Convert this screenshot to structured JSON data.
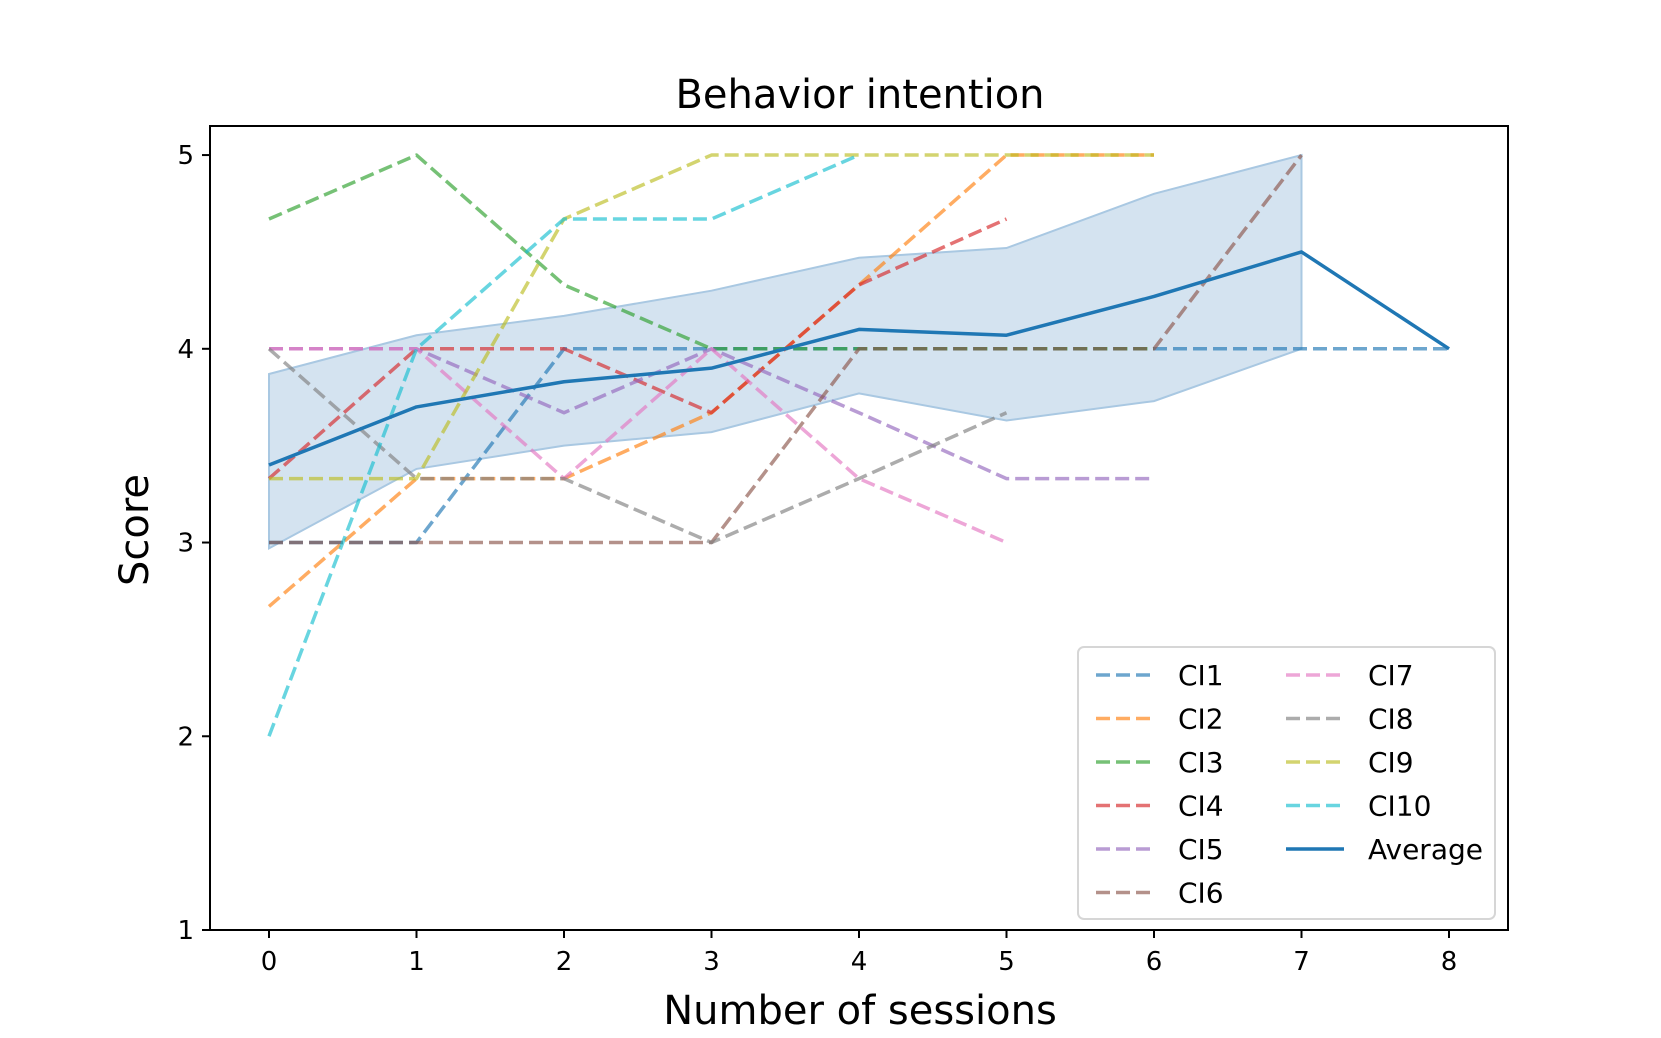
{
  "chart_data": {
    "type": "line",
    "title": "Behavior intention",
    "xlabel": "Number of sessions",
    "ylabel": "Score",
    "xlim": [
      -0.4,
      8.4
    ],
    "ylim": [
      1,
      5.15
    ],
    "xticks": [
      "0",
      "1",
      "2",
      "3",
      "4",
      "5",
      "6",
      "7",
      "8"
    ],
    "yticks": [
      "1",
      "2",
      "3",
      "4",
      "5"
    ],
    "grid": false,
    "legend_position": "lower-right",
    "legend_columns": 2,
    "series": [
      {
        "name": "CI1",
        "color": "#1f77b4",
        "style": "dashed",
        "x": [
          0,
          1,
          2,
          3,
          4,
          5,
          6,
          7,
          8
        ],
        "y": [
          3,
          3,
          4,
          4,
          4,
          4,
          4,
          4,
          4
        ]
      },
      {
        "name": "CI2",
        "color": "#ff7f0e",
        "style": "dashed",
        "x": [
          0,
          1,
          2,
          3,
          4,
          5,
          6
        ],
        "y": [
          2.67,
          3.33,
          3.33,
          3.67,
          4.33,
          5,
          5
        ]
      },
      {
        "name": "CI3",
        "color": "#2ca02c",
        "style": "dashed",
        "x": [
          0,
          1,
          2,
          3,
          4,
          5,
          6
        ],
        "y": [
          4.67,
          5,
          4.33,
          4,
          4,
          4,
          4
        ]
      },
      {
        "name": "CI4",
        "color": "#d62728",
        "style": "dashed",
        "x": [
          0,
          1,
          2,
          3,
          4,
          5
        ],
        "y": [
          3.33,
          4,
          4,
          3.67,
          4.33,
          4.67
        ]
      },
      {
        "name": "CI5",
        "color": "#9467bd",
        "style": "dashed",
        "x": [
          0,
          1,
          2,
          3,
          4,
          5,
          6
        ],
        "y": [
          4,
          4,
          3.67,
          4,
          3.67,
          3.33,
          3.33
        ]
      },
      {
        "name": "CI6",
        "color": "#8c564b",
        "style": "dashed",
        "x": [
          0,
          1,
          2,
          3,
          4,
          5,
          6,
          7
        ],
        "y": [
          3,
          3,
          3,
          3,
          4,
          4,
          4,
          5
        ]
      },
      {
        "name": "CI7",
        "color": "#e377c2",
        "style": "dashed",
        "x": [
          0,
          1,
          2,
          3,
          4,
          5
        ],
        "y": [
          4,
          4,
          3.33,
          4,
          3.33,
          3
        ]
      },
      {
        "name": "CI8",
        "color": "#7f7f7f",
        "style": "dashed",
        "x": [
          0,
          1,
          2,
          3,
          4,
          5
        ],
        "y": [
          4,
          3.33,
          3.33,
          3,
          3.33,
          3.67
        ]
      },
      {
        "name": "CI9",
        "color": "#bcbd22",
        "style": "dashed",
        "x": [
          0,
          1,
          2,
          3,
          4,
          5,
          6
        ],
        "y": [
          3.33,
          3.33,
          4.67,
          5,
          5,
          5,
          5
        ]
      },
      {
        "name": "CI10",
        "color": "#17becf",
        "style": "dashed",
        "x": [
          0,
          1,
          2,
          3,
          4
        ],
        "y": [
          2,
          4,
          4.67,
          4.67,
          5
        ]
      },
      {
        "name": "Average",
        "color": "#1f77b4",
        "style": "solid",
        "x": [
          0,
          1,
          2,
          3,
          4,
          5,
          6,
          7,
          8
        ],
        "y": [
          3.4,
          3.7,
          3.83,
          3.9,
          4.1,
          4.07,
          4.27,
          4.5,
          4
        ]
      }
    ],
    "band": {
      "color": "#a9c8e2",
      "x": [
        0,
        1,
        2,
        3,
        4,
        5,
        6,
        7
      ],
      "upper": [
        3.87,
        4.07,
        4.17,
        4.3,
        4.47,
        4.52,
        4.8,
        5
      ],
      "lower": [
        2.97,
        3.38,
        3.5,
        3.57,
        3.77,
        3.63,
        3.73,
        4
      ]
    }
  }
}
